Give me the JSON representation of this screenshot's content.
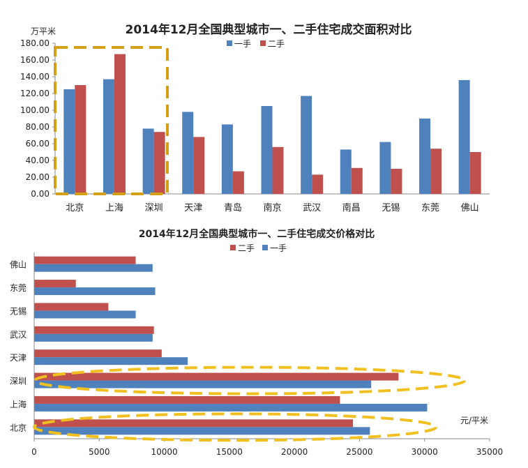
{
  "chart_data": [
    {
      "type": "bar",
      "title": "2014年12月全国典型城市一、二手住宅成交面积对比",
      "ylabel": "万平米",
      "xlabel": "",
      "ylim": [
        0,
        180
      ],
      "yticks": [
        "0.00",
        "20.00",
        "40.00",
        "60.00",
        "80.00",
        "100.00",
        "120.00",
        "140.00",
        "160.00",
        "180.00"
      ],
      "grid": false,
      "legend": "top-right",
      "categories": [
        "北京",
        "上海",
        "深圳",
        "天津",
        "青岛",
        "南京",
        "武汉",
        "南昌",
        "无锡",
        "东莞",
        "佛山"
      ],
      "series": [
        {
          "name": "一手",
          "color": "#4f81bd",
          "values": [
            125,
            137,
            78,
            98,
            83,
            105,
            117,
            53,
            62,
            90,
            136
          ]
        },
        {
          "name": "二手",
          "color": "#c0504d",
          "values": [
            130,
            167,
            74,
            68,
            27,
            56,
            23,
            31,
            30,
            54,
            50
          ]
        }
      ],
      "highlight": {
        "shape": "dashed-rectangle",
        "color": "#d4a017",
        "categories": [
          "北京",
          "上海",
          "深圳"
        ]
      }
    },
    {
      "type": "bar",
      "orientation": "horizontal",
      "title": "2014年12月全国典型城市一、二手住宅成交价格对比",
      "xlabel": "元/平米",
      "ylabel": "",
      "xlim": [
        0,
        35000
      ],
      "xticks": [
        "0",
        "5000",
        "10000",
        "15000",
        "20000",
        "25000",
        "30000",
        "35000"
      ],
      "grid": false,
      "legend": "top-center",
      "categories": [
        "北京",
        "上海",
        "深圳",
        "天津",
        "武汉",
        "无锡",
        "东莞",
        "佛山"
      ],
      "series": [
        {
          "name": "二手",
          "color": "#c0504d",
          "values": [
            24500,
            23500,
            28000,
            9800,
            9200,
            5700,
            3200,
            7800
          ]
        },
        {
          "name": "一手",
          "color": "#4f81bd",
          "values": [
            25800,
            30200,
            25900,
            11800,
            9100,
            7800,
            9300,
            9100
          ]
        }
      ],
      "highlight": {
        "shape": "dashed-ellipse",
        "color": "#f0c020",
        "categories": [
          "深圳",
          "北京"
        ]
      }
    }
  ]
}
